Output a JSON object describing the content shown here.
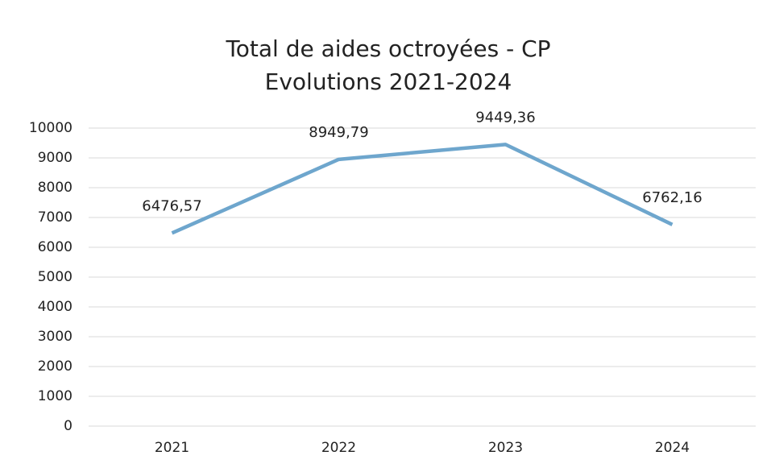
{
  "chart_data": {
    "type": "line",
    "title": "Total de aides octroyées - CP",
    "subtitle": "Evolutions 2021-2024",
    "categories": [
      "2021",
      "2022",
      "2023",
      "2024"
    ],
    "series": [
      {
        "name": "CP",
        "color": "#6ea6cd",
        "values": [
          6476.57,
          8949.79,
          9449.36,
          6762.16
        ],
        "value_labels": [
          "6476,57",
          "8949,79",
          "9449,36",
          "6762,16"
        ]
      }
    ],
    "ylim": [
      0,
      10000
    ],
    "yticks": [
      0,
      1000,
      2000,
      3000,
      4000,
      5000,
      6000,
      7000,
      8000,
      9000,
      10000
    ],
    "grid": true
  }
}
